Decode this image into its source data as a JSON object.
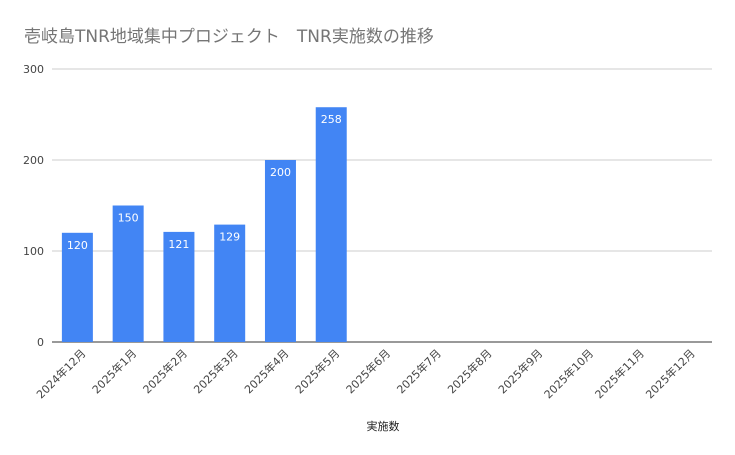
{
  "chart_data": {
    "type": "bar",
    "title": "壱岐島TNR地域集中プロジェクト　TNR実施数の推移",
    "xlabel": "実施数",
    "ylabel": "",
    "ylim": [
      0,
      300
    ],
    "yticks": [
      0,
      100,
      200,
      300
    ],
    "grid": true,
    "legend": "none",
    "categories": [
      "2024年12月",
      "2025年1月",
      "2025年2月",
      "2025年3月",
      "2025年4月",
      "2025年5月",
      "2025年6月",
      "2025年7月",
      "2025年8月",
      "2025年9月",
      "2025年10月",
      "2025年11月",
      "2025年12月"
    ],
    "series": [
      {
        "name": "",
        "color": "#4285f4",
        "values": [
          120,
          150,
          121,
          129,
          200,
          258,
          null,
          null,
          null,
          null,
          null,
          null,
          null
        ]
      }
    ]
  }
}
